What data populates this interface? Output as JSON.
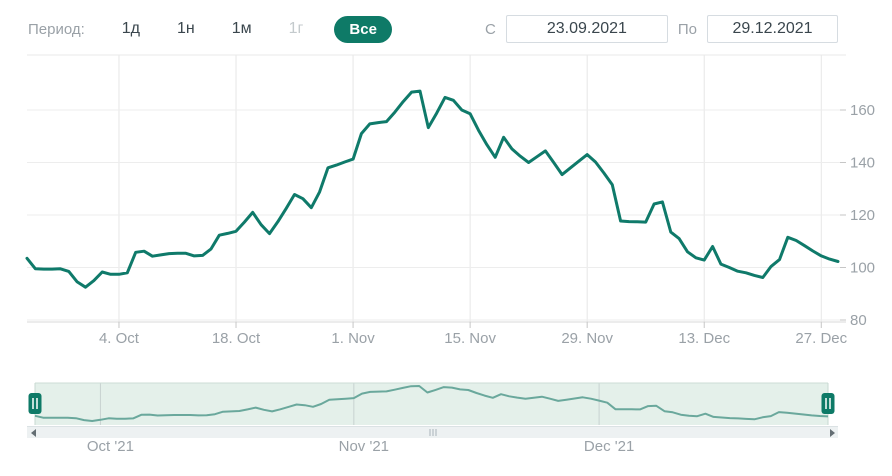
{
  "period_bar": {
    "label": "Период:",
    "accent_color": "#0e7a67",
    "options": [
      {
        "label": "1д",
        "state": "normal"
      },
      {
        "label": "1н",
        "state": "normal"
      },
      {
        "label": "1м",
        "state": "normal"
      },
      {
        "label": "1г",
        "state": "disabled"
      },
      {
        "label": "Все",
        "state": "selected"
      }
    ]
  },
  "date_range": {
    "from_label": "С",
    "from_value": "23.09.2021",
    "to_label": "По",
    "to_value": "29.12.2021"
  },
  "chart_data": {
    "type": "line",
    "title": "",
    "xlabel": "",
    "ylabel": "",
    "frequency": "daily",
    "start_date": "23.09.2021",
    "end_date": "29.12.2021",
    "line_color": "#0f7a6a",
    "grid": "on",
    "ylim": [
      80,
      170
    ],
    "y_ticks": [
      {
        "label": "80",
        "value": 80
      },
      {
        "label": "100",
        "value": 100
      },
      {
        "label": "120",
        "value": 120
      },
      {
        "label": "140",
        "value": 140
      },
      {
        "label": "160",
        "value": 160
      }
    ],
    "x_ticks": [
      {
        "label": "4. Oct",
        "day": 11
      },
      {
        "label": "18. Oct",
        "day": 25
      },
      {
        "label": "1. Nov",
        "day": 39
      },
      {
        "label": "15. Nov",
        "day": 53
      },
      {
        "label": "29. Nov",
        "day": 67
      },
      {
        "label": "13. Dec",
        "day": 81
      },
      {
        "label": "27. Dec",
        "day": 95
      }
    ],
    "values": [
      103.5,
      99.5,
      99.4,
      99.4,
      99.5,
      98.5,
      94.5,
      92.5,
      95.0,
      98.3,
      97.4,
      97.4,
      98.0,
      105.8,
      106.2,
      104.3,
      104.8,
      105.3,
      105.4,
      105.4,
      104.4,
      104.6,
      107.0,
      112.3,
      113.0,
      113.8,
      117.3,
      121.0,
      116.3,
      112.9,
      117.4,
      122.5,
      127.8,
      126.2,
      122.8,
      128.8,
      138.0,
      139.0,
      140.2,
      141.3,
      151.0,
      154.7,
      155.2,
      155.6,
      159.2,
      163.2,
      166.8,
      167.2,
      153.3,
      158.8,
      164.8,
      163.7,
      160.0,
      158.6,
      152.3,
      146.8,
      142.0,
      149.6,
      145.2,
      142.4,
      140.0,
      142.2,
      144.4,
      140.0,
      135.4,
      138.0,
      140.5,
      143.0,
      140.2,
      136.0,
      131.5,
      117.7,
      117.5,
      117.4,
      117.3,
      124.2,
      125.0,
      113.5,
      111.0,
      106.0,
      103.7,
      102.8,
      108.0,
      101.3,
      100.0,
      98.6,
      98.0,
      97.0,
      96.2,
      100.4,
      103.0,
      111.5,
      110.3,
      108.3,
      106.3,
      104.4,
      103.2,
      102.3
    ]
  },
  "navigator": {
    "shows": "same-series-overview",
    "background_color": "#e4f0ea",
    "line_color": "#6aa89c",
    "handle_color": "#0e7a67",
    "month_ticks": [
      {
        "label": "Oct '21",
        "day": 8
      },
      {
        "label": "Nov '21",
        "day": 39
      },
      {
        "label": "Dec '21",
        "day": 69
      }
    ]
  }
}
